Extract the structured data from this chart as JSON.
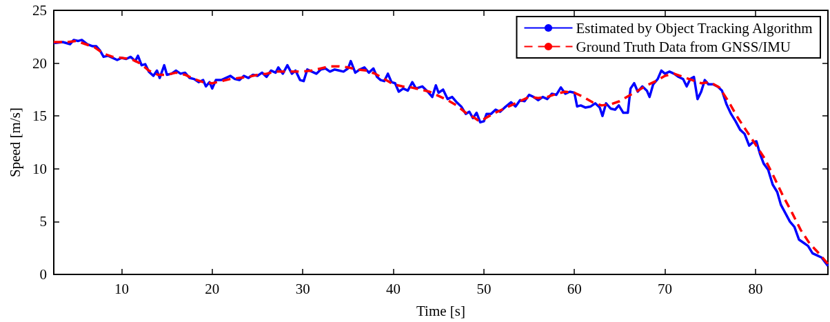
{
  "chart_data": {
    "type": "line",
    "xlabel": "Time [s]",
    "ylabel": "Speed [m/s]",
    "xlim": [
      2.5,
      88
    ],
    "xticks": [
      10,
      20,
      30,
      40,
      50,
      60,
      70,
      80
    ],
    "ylim": [
      0,
      25
    ],
    "yticks": [
      0,
      5,
      10,
      15,
      20,
      25
    ],
    "grid": false,
    "legend": "top right",
    "series": [
      {
        "name": "Estimated by Object Tracking Algorithm",
        "color": "#0000ff",
        "line_style": "solid",
        "x": [
          2.5,
          3.5,
          4.3,
          4.7,
          5.2,
          5.6,
          6.2,
          6.8,
          7.2,
          7.6,
          8,
          8.5,
          9,
          9.5,
          10,
          10.5,
          11,
          11.5,
          11.8,
          12.2,
          12.6,
          13,
          13.5,
          13.9,
          14.2,
          14.7,
          15,
          15.5,
          16,
          16.5,
          17,
          17.5,
          18,
          18.5,
          19,
          19.3,
          19.7,
          20,
          20.4,
          21,
          21.5,
          22,
          22.5,
          23,
          23.5,
          24,
          24.5,
          25,
          25.5,
          26,
          26.5,
          27,
          27.3,
          27.8,
          28.3,
          28.8,
          29.2,
          29.7,
          30.1,
          30.5,
          31,
          31.5,
          32,
          32.5,
          33,
          33.5,
          34,
          34.5,
          35,
          35.3,
          35.8,
          36.3,
          36.8,
          37.3,
          37.8,
          38.2,
          38.6,
          39,
          39.4,
          39.8,
          40.2,
          40.6,
          41.1,
          41.6,
          42.1,
          42.5,
          43.2,
          43.8,
          44.3,
          44.7,
          45,
          45.5,
          46,
          46.5,
          47,
          47.5,
          48,
          48.4,
          48.8,
          49.2,
          49.6,
          50,
          50.3,
          50.8,
          51.3,
          51.8,
          52.3,
          53,
          53.5,
          54,
          54.5,
          55,
          55.5,
          56,
          56.5,
          57,
          57.5,
          58,
          58.5,
          59,
          59.5,
          60,
          60.3,
          60.7,
          61.2,
          61.8,
          62.3,
          62.8,
          63.1,
          63.5,
          64,
          64.5,
          64.9,
          65.4,
          65.9,
          66.2,
          66.6,
          67,
          67.5,
          68,
          68.3,
          68.7,
          69.2,
          69.6,
          70,
          70.5,
          71,
          71.5,
          72,
          72.4,
          72.8,
          73.2,
          73.6,
          74,
          74.4,
          74.8,
          75.3,
          75.8,
          76.3,
          76.8,
          77.3,
          77.8,
          78.3,
          78.8,
          79.3,
          79.7,
          80.1,
          80.5,
          80.9,
          81.4,
          81.9,
          82.4,
          82.8,
          83.3,
          83.8,
          84.3,
          84.8,
          85.3,
          85.8,
          86.3,
          86.8,
          87.3,
          88
        ],
        "values": [
          21.9,
          22.0,
          21.8,
          22.2,
          22.1,
          22.2,
          21.8,
          21.6,
          21.6,
          21.2,
          20.6,
          20.7,
          20.5,
          20.3,
          20.5,
          20.4,
          20.6,
          20.2,
          20.7,
          19.8,
          19.9,
          19.2,
          18.8,
          19.3,
          18.6,
          19.8,
          18.9,
          19.0,
          19.3,
          19.0,
          19.1,
          18.6,
          18.5,
          18.2,
          18.4,
          17.8,
          18.2,
          17.6,
          18.4,
          18.4,
          18.6,
          18.8,
          18.5,
          18.4,
          18.8,
          18.6,
          18.9,
          18.8,
          19.1,
          18.7,
          19.3,
          19.1,
          19.6,
          19.0,
          19.8,
          19.0,
          19.3,
          18.4,
          18.3,
          19.4,
          19.2,
          19.0,
          19.4,
          19.5,
          19.2,
          19.4,
          19.3,
          19.2,
          19.5,
          20.2,
          19.1,
          19.4,
          19.6,
          19.1,
          19.5,
          18.7,
          18.4,
          18.3,
          19.0,
          18.2,
          18.1,
          17.3,
          17.6,
          17.4,
          18.2,
          17.6,
          17.8,
          17.3,
          16.8,
          17.9,
          17.2,
          17.5,
          16.6,
          16.8,
          16.3,
          15.9,
          15.2,
          15.4,
          14.8,
          15.3,
          14.4,
          14.5,
          15.2,
          15.2,
          15.6,
          15.4,
          15.8,
          16.3,
          15.9,
          16.5,
          16.4,
          17.0,
          16.8,
          16.5,
          16.8,
          16.6,
          17.1,
          17.0,
          17.7,
          17.1,
          17.3,
          17.2,
          15.9,
          16.0,
          15.8,
          15.9,
          16.2,
          15.8,
          15.0,
          16.2,
          15.7,
          15.6,
          16.0,
          15.3,
          15.3,
          17.6,
          18.1,
          17.3,
          17.8,
          17.4,
          16.8,
          18.0,
          18.5,
          19.3,
          19.0,
          19.2,
          19.0,
          18.7,
          18.5,
          17.8,
          18.5,
          18.7,
          16.6,
          17.3,
          18.4,
          18.0,
          18.0,
          17.8,
          17.4,
          16.1,
          15.2,
          14.5,
          13.7,
          13.3,
          12.2,
          12.5,
          12.6,
          11.4,
          10.5,
          9.9,
          8.5,
          7.8,
          6.6,
          5.8,
          5.0,
          4.5,
          3.3,
          3.0,
          2.7,
          2.0,
          1.8,
          1.6,
          0.8
        ]
      },
      {
        "name": "Ground Truth Data from GNSS/IMU",
        "color": "#ff0000",
        "line_style": "dashed",
        "x": [
          2.5,
          4,
          5,
          6,
          7,
          8,
          9,
          10,
          11,
          12,
          13,
          14,
          15,
          16,
          17,
          18,
          19,
          20,
          21,
          22,
          23,
          24,
          25,
          26,
          27,
          28,
          29,
          30,
          31,
          32,
          33,
          34,
          35,
          36,
          37,
          38,
          39,
          40,
          41,
          42,
          43,
          44,
          45,
          46,
          47,
          48,
          49,
          49.5,
          50,
          51,
          52,
          53,
          54,
          55,
          56,
          57,
          58,
          59,
          60,
          61,
          62,
          63,
          64,
          65,
          66,
          67,
          68,
          69,
          70,
          71,
          72,
          73,
          74,
          75,
          76,
          77,
          78,
          79,
          80,
          81,
          82,
          83,
          84,
          85,
          86,
          87,
          88
        ],
        "values": [
          22,
          22,
          22.1,
          21.8,
          21.5,
          20.9,
          20.6,
          20.5,
          20.4,
          20,
          19.3,
          18.9,
          18.9,
          19.1,
          18.9,
          18.5,
          18.2,
          18.1,
          18.3,
          18.5,
          18.6,
          18.7,
          18.9,
          19,
          19.2,
          19.2,
          19.2,
          19.2,
          19.3,
          19.5,
          19.7,
          19.7,
          19.6,
          19.4,
          19.3,
          19,
          18.5,
          18,
          17.8,
          17.7,
          17.5,
          17.3,
          16.9,
          16.5,
          16,
          15.3,
          14.8,
          14.5,
          14.7,
          15.2,
          15.6,
          16,
          16.4,
          16.8,
          16.7,
          16.8,
          17.1,
          17.3,
          17.2,
          16.8,
          16.3,
          16,
          16.1,
          16.4,
          16.9,
          17.4,
          17.9,
          18.3,
          18.8,
          19,
          18.7,
          18.4,
          18.1,
          18.2,
          17.7,
          16.4,
          14.9,
          13.6,
          12.3,
          11,
          9.3,
          7.5,
          5.9,
          4.2,
          2.9,
          2,
          1
        ]
      }
    ]
  }
}
